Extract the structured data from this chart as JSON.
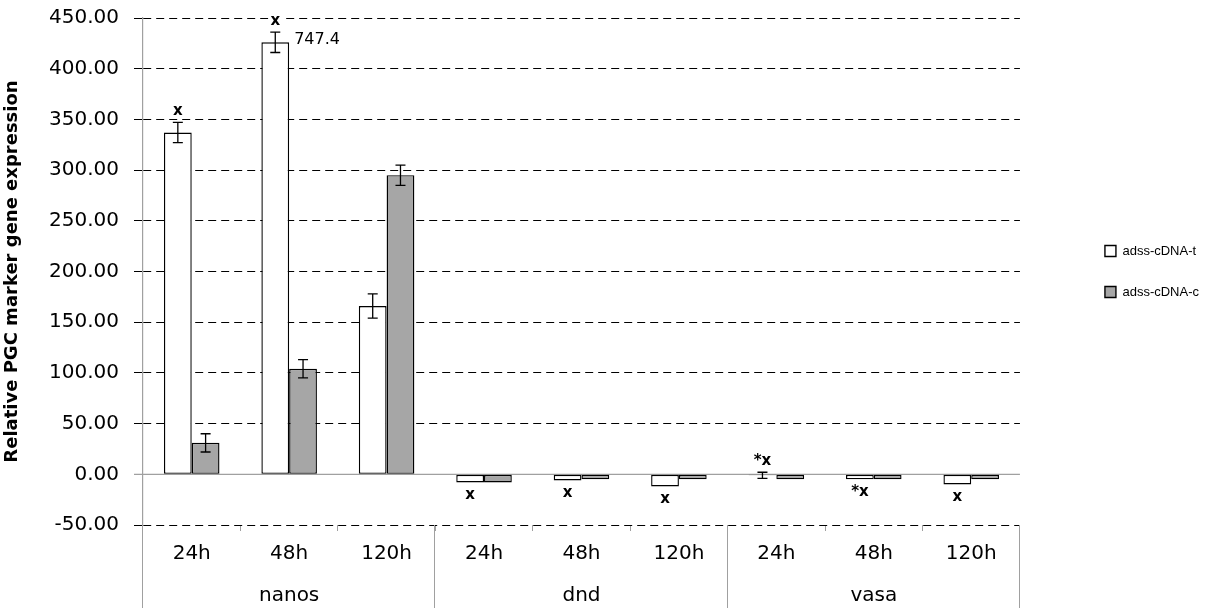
{
  "chart_data": {
    "type": "bar",
    "ylabel": "Relative PGC marker gene expression",
    "categories": [
      "24h",
      "48h",
      "120h",
      "24h",
      "48h",
      "120h",
      "24h",
      "48h",
      "120h"
    ],
    "series": [
      {
        "name": "adss-cDNA-t",
        "color": "#ffffff",
        "colors": [
          "#ffffff",
          "#ffffff",
          "#ffffff",
          "#ffffff",
          "#ffffff",
          "#ffffff",
          "#000000",
          "#ffffff",
          "#ffffff"
        ],
        "values": [
          337,
          426,
          166,
          -8,
          -6,
          -12,
          -1,
          -5,
          -10
        ],
        "errors": [
          10,
          10,
          12,
          null,
          null,
          null,
          3,
          null,
          null
        ],
        "value_labels": [
          "x",
          "x",
          null,
          "x",
          "x",
          "x",
          "*x",
          "*x",
          "x"
        ]
      },
      {
        "name": "adss-cDNA-c",
        "color": "#a6a6a6",
        "values": [
          31,
          104,
          295,
          -8,
          -5,
          -5,
          -5,
          -5,
          -5
        ],
        "errors": [
          9,
          9,
          10,
          null,
          null,
          null,
          null,
          null,
          null
        ]
      }
    ],
    "ylim": [
      -50,
      450
    ],
    "yticks": [
      {
        "value": -50,
        "label": "-50.00"
      },
      {
        "value": 0,
        "label": "0.00"
      },
      {
        "value": 50,
        "label": "50.00"
      },
      {
        "value": 100,
        "label": "100.00"
      },
      {
        "value": 150,
        "label": "150.00"
      },
      {
        "value": 200,
        "label": "200.00"
      },
      {
        "value": 250,
        "label": "250.00"
      },
      {
        "value": 300,
        "label": "300.00"
      },
      {
        "value": 350,
        "label": "350.00"
      },
      {
        "value": 400,
        "label": "400.00"
      },
      {
        "value": 450,
        "label": "450.00"
      }
    ],
    "grid": "y",
    "legend": "right",
    "annotations": [
      "nanos",
      "dnd",
      "vasa",
      {
        "text": "747.4",
        "x": "48h",
        "y": 426
      }
    ]
  }
}
